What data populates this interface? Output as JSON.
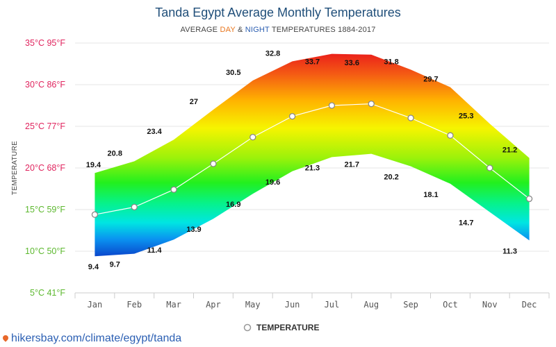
{
  "title": "Tanda Egypt Average Monthly Temperatures",
  "subtitle": {
    "prefix": "AVERAGE ",
    "day": "DAY",
    "amp": " & ",
    "night": "NIGHT",
    "suffix": " TEMPERATURES 1884-2017"
  },
  "colors": {
    "day_word": "#e8761e",
    "night_word": "#2a5db0",
    "mean_line": "#ffffff",
    "marker_fill": "#ffffff",
    "marker_stroke": "#888888"
  },
  "source": "hikersbay.com/climate/egypt/tanda",
  "legend": {
    "label": "TEMPERATURE",
    "position": "bottom-center"
  },
  "chart_data": {
    "type": "area",
    "ylabel": "TEMPERATURE",
    "ylim": [
      5,
      35
    ],
    "yticks": [
      {
        "value": 35,
        "label": "35°C 95°F",
        "color": "#e0245e"
      },
      {
        "value": 30,
        "label": "30°C 86°F",
        "color": "#e0245e"
      },
      {
        "value": 25,
        "label": "25°C 77°F",
        "color": "#e0245e"
      },
      {
        "value": 20,
        "label": "20°C 68°F",
        "color": "#e0245e"
      },
      {
        "value": 15,
        "label": "15°C 59°F",
        "color": "#5cb82e"
      },
      {
        "value": 10,
        "label": "10°C 50°F",
        "color": "#5cb82e"
      },
      {
        "value": 5,
        "label": "5°C 41°F",
        "color": "#5cb82e"
      }
    ],
    "grid": true,
    "categories": [
      "Jan",
      "Feb",
      "Mar",
      "Apr",
      "May",
      "Jun",
      "Jul",
      "Aug",
      "Sep",
      "Oct",
      "Nov",
      "Dec"
    ],
    "day": [
      19.4,
      20.8,
      23.4,
      27,
      30.5,
      32.8,
      33.7,
      33.6,
      31.8,
      29.7,
      25.3,
      21.2
    ],
    "night": [
      9.4,
      9.7,
      11.4,
      13.9,
      16.9,
      19.6,
      21.3,
      21.7,
      20.2,
      18.1,
      14.7,
      11.3
    ],
    "day_labels": [
      "19.4",
      "20.8",
      "23.4",
      "27",
      "30.5",
      "32.8",
      "33.7",
      "33.6",
      "31.8",
      "29.7",
      "25.3",
      "21.2"
    ],
    "night_labels": [
      "9.4",
      "9.7",
      "11.4",
      "13.9",
      "16.9",
      "19.6",
      "21.3",
      "21.7",
      "20.2",
      "18.1",
      "14.7",
      "11.3"
    ],
    "series": [
      {
        "name": "TEMPERATURE",
        "values": [
          14.4,
          15.3,
          17.4,
          20.5,
          23.7,
          26.2,
          27.5,
          27.7,
          26.0,
          23.9,
          20.0,
          16.3
        ]
      }
    ]
  }
}
